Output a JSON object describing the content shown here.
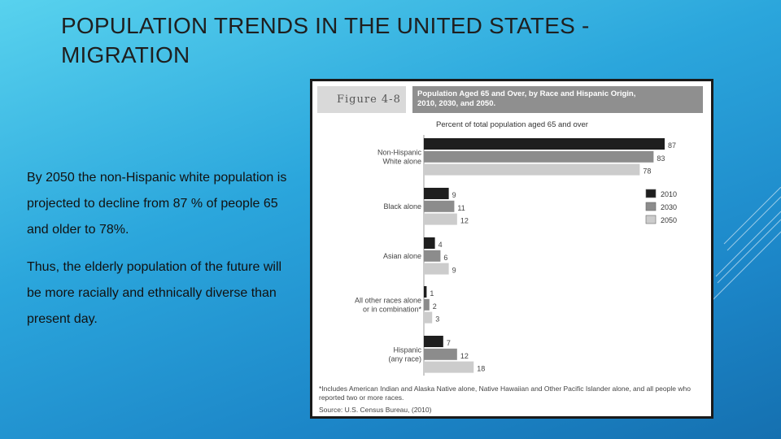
{
  "title": "POPULATION TRENDS IN THE UNITED STATES - MIGRATION",
  "paragraphs": [
    "By 2050 the non-Hispanic white population is projected to decline from 87 % of people 65 and older to 78%.",
    "Thus, the elderly population of the future will be more racially and ethnically diverse than present day."
  ],
  "figure": {
    "label": "Figure 4-8",
    "header_line1": "Population Aged 65 and Over, by Race and Hispanic Origin,",
    "header_line2": "2010, 2030, and 2050.",
    "footnote": "*Includes American Indian and Alaska Native alone, Native Hawaiian and Other Pacific Islander alone, and all people who reported two or more races.",
    "source": "Source: U.S. Census Bureau, (2010)"
  },
  "chart_data": {
    "type": "bar",
    "orientation": "horizontal",
    "title": "Percent of total population aged 65 and over",
    "categories": [
      [
        "Non-Hispanic",
        "White alone"
      ],
      [
        "Black alone"
      ],
      [
        "Asian alone"
      ],
      [
        "All other races alone",
        "or in combination*"
      ],
      [
        "Hispanic",
        "(any race)"
      ]
    ],
    "series": [
      {
        "name": "2010",
        "color": "#1e1e1e",
        "values": [
          87,
          9,
          4,
          1,
          7
        ]
      },
      {
        "name": "2030",
        "color": "#8c8c8c",
        "values": [
          83,
          11,
          6,
          2,
          12
        ]
      },
      {
        "name": "2050",
        "color": "#cccccc",
        "values": [
          78,
          12,
          9,
          3,
          18
        ]
      }
    ],
    "xlim": [
      0,
      87
    ],
    "legend": "right"
  }
}
